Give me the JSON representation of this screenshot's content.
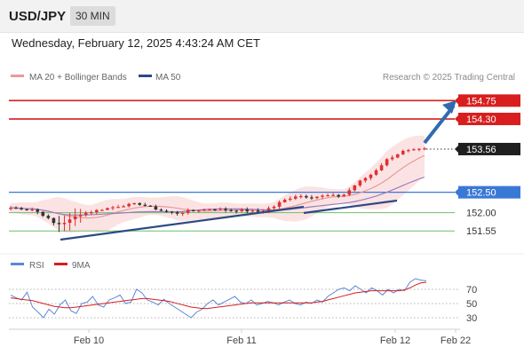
{
  "header": {
    "pair": "USD/JPY",
    "interval": "30 MIN"
  },
  "datetime": "Wednesday, February 12, 2025 4:43:24 AM CET",
  "legend": {
    "ma20": "MA 20 + Bollinger Bands",
    "ma50": "MA 50",
    "credit": "Research © 2025 Trading Central"
  },
  "rsi_legend": {
    "rsi": "RSI",
    "ma9": "9MA"
  },
  "colors": {
    "resistance": "#d81e1e",
    "support": "#6fbf6f",
    "pivot": "#3a78d6",
    "ma20": "#e89a9a",
    "ma50": "#2c4a84",
    "bollinger": "#fbdede",
    "candle_up": "#e03030",
    "candle_down": "#333333",
    "rsi": "#5b87d6",
    "rsi_ma": "#d81e1e",
    "arrow": "#2f6bb0"
  },
  "chart_data": {
    "type": "candlestick",
    "y_range": [
      151.25,
      155.15
    ],
    "levels": [
      {
        "value": 154.75,
        "label": "154.75",
        "kind": "resistance"
      },
      {
        "value": 154.3,
        "label": "154.30",
        "kind": "resistance"
      },
      {
        "value": 153.56,
        "label": "153.56",
        "kind": "current"
      },
      {
        "value": 152.5,
        "label": "152.50",
        "kind": "pivot"
      },
      {
        "value": 152.0,
        "label": "152.00",
        "kind": "support"
      },
      {
        "value": 151.55,
        "label": "151.55",
        "kind": "support"
      }
    ],
    "x_labels": [
      "Feb 10",
      "Feb 11",
      "Feb 12",
      "Feb 22"
    ],
    "rsi": {
      "levels": [
        70,
        50,
        30
      ],
      "range": [
        15,
        90
      ],
      "values": [
        62,
        58,
        55,
        66,
        45,
        38,
        30,
        42,
        35,
        48,
        55,
        40,
        36,
        50,
        52,
        60,
        48,
        45,
        55,
        58,
        62,
        50,
        52,
        70,
        65,
        55,
        52,
        48,
        56,
        50,
        45,
        40,
        35,
        30,
        38,
        42,
        50,
        55,
        48,
        52,
        56,
        60,
        52,
        50,
        55,
        48,
        50,
        53,
        51,
        48,
        52,
        55,
        50,
        48,
        52,
        50,
        55,
        52,
        60,
        65,
        70,
        72,
        68,
        75,
        70,
        65,
        72,
        68,
        62,
        70,
        65,
        70,
        68,
        80,
        85,
        83,
        82
      ],
      "ma9": [
        58,
        57,
        56,
        55,
        54,
        52,
        50,
        48,
        46,
        45,
        44,
        44,
        45,
        46,
        47,
        48,
        49,
        50,
        51,
        52,
        53,
        54,
        55,
        56,
        57,
        57,
        56,
        55,
        54,
        53,
        51,
        49,
        47,
        45,
        44,
        43,
        43,
        44,
        45,
        46,
        47,
        48,
        49,
        50,
        51,
        51,
        51,
        51,
        51,
        51,
        51,
        51,
        51,
        51,
        51,
        51,
        52,
        53,
        55,
        57,
        59,
        61,
        63,
        65,
        66,
        67,
        68,
        68,
        68,
        68,
        68,
        68,
        69,
        72,
        76,
        79,
        80
      ]
    }
  }
}
